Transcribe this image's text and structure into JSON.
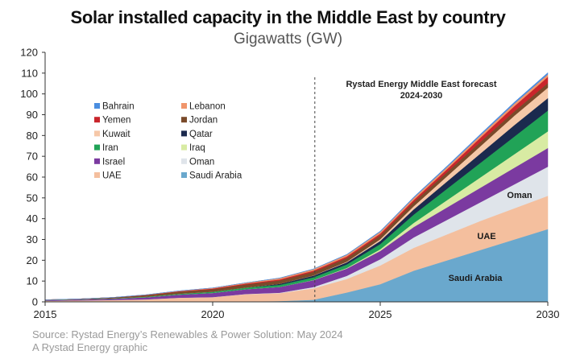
{
  "chart_data": {
    "type": "area",
    "stacked": true,
    "title": "Solar installed capacity in the Middle East by country",
    "subtitle": "Gigawatts (GW)",
    "x": [
      2015,
      2016,
      2017,
      2018,
      2019,
      2020,
      2021,
      2022,
      2023,
      2024,
      2025,
      2026,
      2027,
      2028,
      2029,
      2030
    ],
    "x_ticks": [
      "2015",
      "2020",
      "2025",
      "2030"
    ],
    "ylim": [
      0,
      120
    ],
    "y_ticks": [
      "0",
      "10",
      "20",
      "30",
      "40",
      "50",
      "60",
      "70",
      "80",
      "90",
      "100",
      "110",
      "120"
    ],
    "grid": false,
    "legend_position": "top-left",
    "forecast_line_x": 2023,
    "forecast_label": [
      "Rystad Energy Middle East forecast",
      "2024-2030"
    ],
    "series": [
      {
        "name": "Saudi Arabia",
        "color": "#6aa8cd",
        "values": [
          0,
          0,
          0,
          0,
          0,
          0,
          0.2,
          0.4,
          1.0,
          4.5,
          8.5,
          15.0,
          20.0,
          25.0,
          30.0,
          35.0
        ]
      },
      {
        "name": "UAE",
        "color": "#f4bf9e",
        "values": [
          0.5,
          0.7,
          0.9,
          1.2,
          2.0,
          2.3,
          3.5,
          3.8,
          5.5,
          6.5,
          9.0,
          11.0,
          12.5,
          14.0,
          15.0,
          16.0
        ]
      },
      {
        "name": "Oman",
        "color": "#dfe4ea",
        "values": [
          0,
          0,
          0,
          0,
          0,
          0,
          0.1,
          0.2,
          0.6,
          1.5,
          3.0,
          5.0,
          7.0,
          9.0,
          11.5,
          14.0
        ]
      },
      {
        "name": "Israel",
        "color": "#7b3aa0",
        "values": [
          0.3,
          0.4,
          0.6,
          1.0,
          1.5,
          2.0,
          2.3,
          2.8,
          3.3,
          3.5,
          4.0,
          5.0,
          6.0,
          7.0,
          8.0,
          9.0
        ]
      },
      {
        "name": "Iraq",
        "color": "#d8eba3",
        "values": [
          0,
          0,
          0,
          0,
          0,
          0,
          0,
          0,
          0.1,
          0.3,
          0.8,
          2.0,
          3.5,
          5.0,
          6.5,
          8.0
        ]
      },
      {
        "name": "Iran",
        "color": "#21a357",
        "values": [
          0.1,
          0.1,
          0.2,
          0.3,
          0.4,
          0.6,
          0.8,
          1.0,
          1.3,
          1.7,
          2.5,
          4.0,
          5.5,
          7.0,
          8.5,
          10.0
        ]
      },
      {
        "name": "Qatar",
        "color": "#1b2a4e",
        "values": [
          0,
          0,
          0,
          0,
          0,
          0,
          0,
          0.5,
          0.8,
          1.0,
          1.5,
          2.5,
          3.5,
          4.5,
          5.5,
          6.0
        ]
      },
      {
        "name": "Kuwait",
        "color": "#f6c8a8",
        "values": [
          0,
          0,
          0,
          0,
          0,
          0,
          0,
          0,
          0.1,
          0.3,
          0.8,
          1.5,
          2.5,
          3.5,
          4.5,
          5.0
        ]
      },
      {
        "name": "Jordan",
        "color": "#7a4a2a",
        "values": [
          0.1,
          0.2,
          0.4,
          0.7,
          1.0,
          1.2,
          1.5,
          1.6,
          1.7,
          1.8,
          1.9,
          2.0,
          2.0,
          2.1,
          2.1,
          2.2
        ]
      },
      {
        "name": "Yemen",
        "color": "#c9252b",
        "values": [
          0,
          0,
          0,
          0.1,
          0.2,
          0.3,
          0.4,
          0.5,
          0.6,
          0.7,
          0.8,
          1.0,
          1.4,
          2.0,
          2.5,
          3.0
        ]
      },
      {
        "name": "Lebanon",
        "color": "#f0956b",
        "values": [
          0,
          0,
          0,
          0.1,
          0.2,
          0.3,
          0.4,
          0.6,
          0.7,
          0.8,
          0.9,
          1.0,
          1.0,
          1.1,
          1.2,
          1.2
        ]
      },
      {
        "name": "Bahrain",
        "color": "#4a8ee0",
        "values": [
          0,
          0,
          0,
          0,
          0,
          0,
          0,
          0.1,
          0.1,
          0.2,
          0.3,
          0.4,
          0.5,
          0.6,
          0.7,
          0.8
        ]
      }
    ],
    "legend": [
      {
        "name": "Bahrain",
        "color": "#4a8ee0"
      },
      {
        "name": "Lebanon",
        "color": "#f0956b"
      },
      {
        "name": "Yemen",
        "color": "#c9252b"
      },
      {
        "name": "Jordan",
        "color": "#7a4a2a"
      },
      {
        "name": "Kuwait",
        "color": "#f6c8a8"
      },
      {
        "name": "Qatar",
        "color": "#1b2a4e"
      },
      {
        "name": "Iran",
        "color": "#21a357"
      },
      {
        "name": "Iraq",
        "color": "#d8eba3"
      },
      {
        "name": "Israel",
        "color": "#7b3aa0"
      },
      {
        "name": "Oman",
        "color": "#dfe4ea"
      },
      {
        "name": "UAE",
        "color": "#f4bf9e"
      },
      {
        "name": "Saudi Arabia",
        "color": "#6aa8cd"
      }
    ],
    "area_labels": [
      "Oman",
      "UAE",
      "Saudi Arabia"
    ]
  },
  "source": "Source: Rystad Energy’s Renewables & Power Solution: May 2024",
  "credit": "A Rystad Energy graphic"
}
